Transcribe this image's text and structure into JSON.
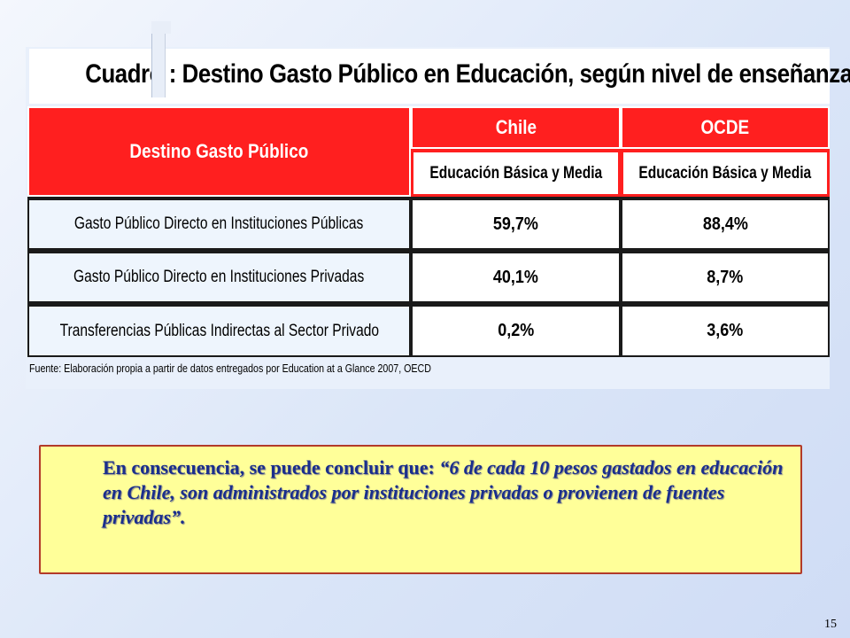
{
  "title": "Cuadro : Destino Gasto Público en Educación, según nivel de enseñanza",
  "table": {
    "corner_header": "Destino Gasto Público",
    "columns": [
      {
        "country": "Chile",
        "level": "Educación Básica y Media"
      },
      {
        "country": "OCDE",
        "level": "Educación Básica y Media"
      }
    ],
    "rows": [
      {
        "label": "Gasto Público Directo en Instituciones Públicas",
        "values": [
          "59,7%",
          "88,4%"
        ]
      },
      {
        "label": "Gasto Público Directo en Instituciones Privadas",
        "values": [
          "40,1%",
          "8,7%"
        ]
      },
      {
        "label": "Transferencias Públicas Indirectas al Sector Privado",
        "values": [
          "0,2%",
          "3,6%"
        ]
      }
    ]
  },
  "source": "Fuente: Elaboración propia a partir de datos entregados por Education at a Glance 2007, OECD",
  "note": {
    "lead": "En consecuencia, se puede concluir que: ",
    "quote": "“6 de cada 10 pesos gastados en educación en Chile, son administrados por instituciones privadas o provienen de fuentes privadas”."
  },
  "page_number": "15",
  "colors": {
    "header_red": "#ff1f1f",
    "note_bg": "#ffff99",
    "note_text": "#1a2e8c"
  }
}
